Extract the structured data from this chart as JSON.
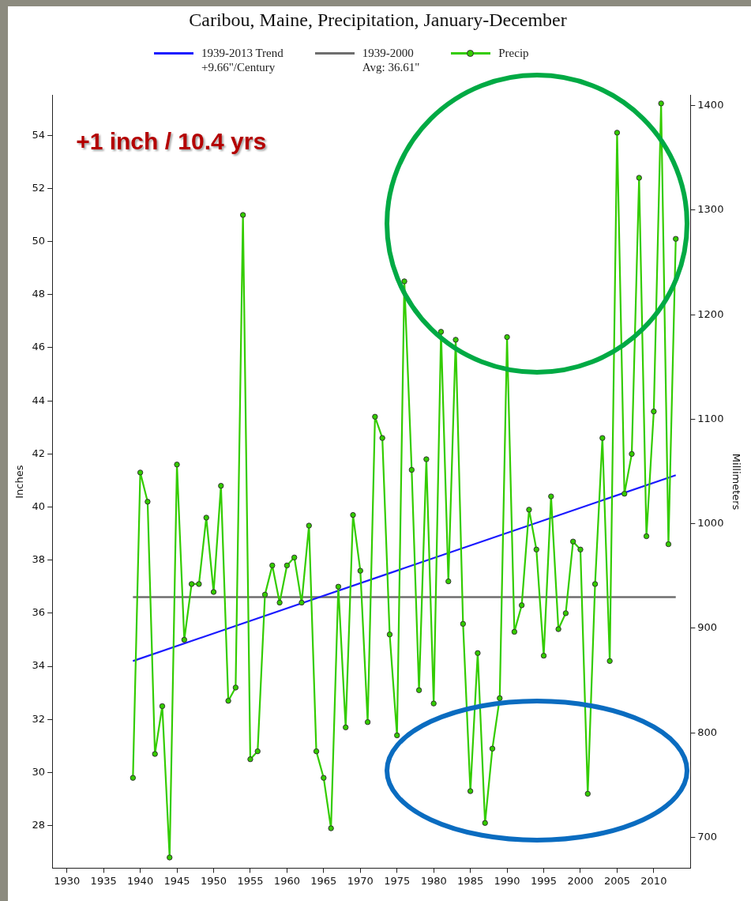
{
  "chart_data": {
    "type": "line",
    "title": "Caribou, Maine, Precipitation, January-December",
    "ylabel": "Inches",
    "y2label": "Millimeters",
    "xlim": [
      1928,
      2015
    ],
    "xticks": [
      1930,
      1935,
      1940,
      1945,
      1950,
      1955,
      1960,
      1965,
      1970,
      1975,
      1980,
      1985,
      1990,
      1995,
      2000,
      2005,
      2010
    ],
    "ylim": [
      26.4,
      55.5
    ],
    "yticks": [
      28,
      30,
      32,
      34,
      36,
      38,
      40,
      42,
      44,
      46,
      48,
      50,
      52,
      54
    ],
    "y2lim": [
      670.6,
      1409.7
    ],
    "y2ticks": [
      700,
      800,
      900,
      1000,
      1100,
      1200,
      1300,
      1400
    ],
    "grid": false,
    "legend": "top",
    "marker": "circle",
    "line_style": "solid",
    "ref_lines": [
      {
        "axis": "y",
        "value": 36.61,
        "label": "1939-2000\nAvg: 36.61\"",
        "color": "#6e6e6e"
      }
    ],
    "annotations": [
      "+1 inch / 10.4 yrs"
    ],
    "series": [
      {
        "name": "1939-2013 Trend\n+9.66\"/Century",
        "type": "line",
        "marker": "none",
        "color": "#1a1aff",
        "x": [
          1939,
          2013
        ],
        "values": [
          34.2,
          41.2
        ]
      },
      {
        "name": "Precip",
        "type": "line",
        "color": "#33cc00",
        "x": [
          1939,
          1940,
          1941,
          1942,
          1943,
          1944,
          1945,
          1946,
          1947,
          1948,
          1949,
          1950,
          1951,
          1952,
          1953,
          1954,
          1955,
          1956,
          1957,
          1958,
          1959,
          1960,
          1961,
          1962,
          1963,
          1964,
          1965,
          1966,
          1967,
          1968,
          1969,
          1970,
          1971,
          1972,
          1973,
          1974,
          1975,
          1976,
          1977,
          1978,
          1979,
          1980,
          1981,
          1982,
          1983,
          1984,
          1985,
          1986,
          1987,
          1988,
          1989,
          1990,
          1991,
          1992,
          1993,
          1994,
          1995,
          1996,
          1997,
          1998,
          1999,
          2000,
          2001,
          2002,
          2003,
          2004,
          2005,
          2006,
          2007,
          2008,
          2009,
          2010,
          2011,
          2012,
          2013
        ],
        "values": [
          29.8,
          41.3,
          40.2,
          30.7,
          32.5,
          26.8,
          41.6,
          35.0,
          37.1,
          37.1,
          39.6,
          36.8,
          40.8,
          32.7,
          33.2,
          51.0,
          30.5,
          30.8,
          36.7,
          37.8,
          36.4,
          37.8,
          38.1,
          36.4,
          39.3,
          30.8,
          29.8,
          27.9,
          37.0,
          31.7,
          39.7,
          37.6,
          31.9,
          43.4,
          42.6,
          35.2,
          31.4,
          48.5,
          41.4,
          33.1,
          41.8,
          32.6,
          46.6,
          37.2,
          46.3,
          35.6,
          29.3,
          34.5,
          28.1,
          30.9,
          32.8,
          46.4,
          35.3,
          36.3,
          39.9,
          38.4,
          34.4,
          40.4,
          35.4,
          36.0,
          38.7,
          38.4,
          29.2,
          37.1,
          42.6,
          34.2,
          54.1,
          40.5,
          42.0,
          52.4,
          38.9,
          43.6,
          55.2,
          38.6,
          50.1
        ]
      }
    ]
  }
}
